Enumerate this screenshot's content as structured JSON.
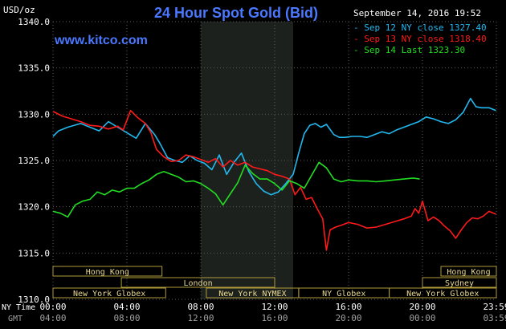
{
  "chart_data": {
    "type": "line",
    "title": "24 Hour Spot Gold (Bid)",
    "brand": "www.kitco.com",
    "ylabel": "USD/oz",
    "timestamp": "September 14, 2016 19:52",
    "ylim": [
      1310,
      1340
    ],
    "y_ticks": [
      "1340.0",
      "1335.0",
      "1330.0",
      "1325.0",
      "1320.0",
      "1315.0",
      "1310.0"
    ],
    "x_ticks_ny": [
      "00:00",
      "04:00",
      "08:00",
      "12:00",
      "16:00",
      "20:00",
      "23:59"
    ],
    "x_ticks_gmt": [
      "04:00",
      "08:00",
      "12:00",
      "16:00",
      "20:00",
      "00:00",
      "03:59"
    ],
    "x_row_label_ny": "NY Time",
    "x_row_label_gmt": "GMT",
    "highlight": [
      8,
      13
    ],
    "legend": [
      {
        "label": "Sep 12 NY close 1327.40",
        "color": "#22b8f0"
      },
      {
        "label": "Sep 13 NY close 1318.40",
        "color": "#ff1a1a"
      },
      {
        "label": "Sep 14 Last 1323.30",
        "color": "#22dd22"
      }
    ],
    "sessions": [
      {
        "label": "Hong Kong",
        "start": 0,
        "end": 5.9,
        "row": 0
      },
      {
        "label": "Hong Kong",
        "start": 21,
        "end": 24,
        "row": 0
      },
      {
        "label": "London",
        "start": 3.7,
        "end": 12,
        "row": 1
      },
      {
        "label": "Sydney",
        "start": 20,
        "end": 24,
        "row": 1
      },
      {
        "label": "New York Globex",
        "start": 0,
        "end": 6.1,
        "row": 2
      },
      {
        "label": "New York NYMEX",
        "start": 8.3,
        "end": 13.3,
        "row": 2
      },
      {
        "label": "NY Globex",
        "start": 13.3,
        "end": 18.2,
        "row": 2
      },
      {
        "label": "New York Globex",
        "start": 18.2,
        "end": 24,
        "row": 2
      }
    ],
    "series": [
      {
        "color": "#22b8f0",
        "x": [
          0,
          0.3,
          0.8,
          1.5,
          2.0,
          2.5,
          3.0,
          3.5,
          4.0,
          4.5,
          5.0,
          5.5,
          5.8,
          6.2,
          6.6,
          7.0,
          7.4,
          7.8,
          8.2,
          8.6,
          9.0,
          9.4,
          9.8,
          10.2,
          10.6,
          11.0,
          11.4,
          11.8,
          12.2,
          12.6,
          13.0,
          13.3,
          13.6,
          13.9,
          14.2,
          14.5,
          14.8,
          15.2,
          15.5,
          15.8,
          16.2,
          16.6,
          17.0,
          17.4,
          17.8,
          18.2,
          18.6,
          19.0,
          19.4,
          19.8,
          20.2,
          20.6,
          21.0,
          21.4,
          21.8,
          22.2,
          22.6,
          22.9,
          23.2,
          23.6,
          23.98
        ],
        "y": [
          1327.6,
          1328.2,
          1328.6,
          1329.0,
          1328.6,
          1328.2,
          1329.2,
          1328.6,
          1328.0,
          1327.4,
          1329.0,
          1327.8,
          1326.8,
          1325.3,
          1325.0,
          1324.8,
          1325.5,
          1325.0,
          1324.7,
          1324.0,
          1325.6,
          1323.5,
          1324.8,
          1325.8,
          1323.8,
          1322.5,
          1321.7,
          1321.3,
          1321.6,
          1322.5,
          1323.5,
          1325.8,
          1327.9,
          1328.8,
          1329.0,
          1328.6,
          1328.9,
          1327.8,
          1327.5,
          1327.5,
          1327.6,
          1327.6,
          1327.5,
          1327.8,
          1328.1,
          1327.9,
          1328.3,
          1328.6,
          1328.9,
          1329.2,
          1329.7,
          1329.5,
          1329.2,
          1329.0,
          1329.4,
          1330.2,
          1331.7,
          1330.8,
          1330.7,
          1330.7,
          1330.4
        ]
      },
      {
        "color": "#ff1a1a",
        "x": [
          0,
          0.5,
          1.0,
          1.5,
          2.0,
          2.5,
          3.0,
          3.5,
          3.8,
          4.2,
          4.6,
          5.0,
          5.3,
          5.6,
          6.0,
          6.4,
          6.8,
          7.2,
          7.6,
          8.0,
          8.4,
          8.8,
          9.2,
          9.6,
          10.0,
          10.4,
          10.8,
          11.2,
          11.6,
          12.0,
          12.4,
          12.8,
          13.1,
          13.4,
          13.7,
          14.0,
          14.3,
          14.6,
          14.8,
          15.0,
          15.3,
          15.6,
          16.0,
          16.5,
          17.0,
          17.5,
          18.0,
          18.5,
          19.0,
          19.4,
          19.6,
          19.8,
          20.0,
          20.3,
          20.6,
          20.9,
          21.2,
          21.5,
          21.8,
          22.1,
          22.4,
          22.7,
          23.0,
          23.3,
          23.6,
          23.98
        ],
        "y": [
          1330.3,
          1329.8,
          1329.5,
          1329.2,
          1328.8,
          1328.7,
          1328.4,
          1328.7,
          1328.3,
          1330.4,
          1329.6,
          1329.0,
          1328.0,
          1326.2,
          1325.4,
          1324.9,
          1325.0,
          1325.6,
          1325.4,
          1325.1,
          1324.8,
          1325.2,
          1324.3,
          1325.0,
          1324.5,
          1324.8,
          1324.3,
          1324.1,
          1323.9,
          1323.5,
          1323.3,
          1323.0,
          1321.3,
          1322.1,
          1320.8,
          1321.0,
          1319.8,
          1318.7,
          1315.3,
          1317.5,
          1317.8,
          1318.0,
          1318.3,
          1318.1,
          1317.7,
          1317.8,
          1318.1,
          1318.4,
          1318.7,
          1319.0,
          1319.8,
          1319.3,
          1320.6,
          1318.5,
          1318.9,
          1318.5,
          1317.9,
          1317.4,
          1316.6,
          1317.5,
          1318.3,
          1318.8,
          1318.7,
          1319.0,
          1319.5,
          1319.2
        ]
      },
      {
        "color": "#22dd22",
        "x": [
          0,
          0.4,
          0.8,
          1.2,
          1.6,
          2.0,
          2.4,
          2.8,
          3.2,
          3.6,
          4.0,
          4.4,
          4.8,
          5.2,
          5.6,
          6.0,
          6.4,
          6.8,
          7.2,
          7.6,
          8.0,
          8.4,
          8.8,
          9.2,
          9.6,
          10.0,
          10.4,
          10.8,
          11.2,
          11.6,
          12.0,
          12.4,
          12.8,
          13.2,
          13.6,
          14.0,
          14.4,
          14.8,
          15.2,
          15.6,
          16.0,
          16.5,
          17.0,
          17.5,
          18.0,
          18.5,
          19.0,
          19.5,
          19.85
        ],
        "y": [
          1319.5,
          1319.3,
          1318.9,
          1320.2,
          1320.6,
          1320.8,
          1321.6,
          1321.3,
          1321.8,
          1321.6,
          1322.0,
          1322.0,
          1322.5,
          1322.9,
          1323.5,
          1323.8,
          1323.5,
          1323.2,
          1322.7,
          1322.8,
          1322.5,
          1322.0,
          1321.4,
          1320.2,
          1321.4,
          1322.6,
          1324.5,
          1323.6,
          1323.0,
          1323.0,
          1322.5,
          1321.8,
          1322.8,
          1322.5,
          1322.0,
          1323.4,
          1324.8,
          1324.2,
          1323.0,
          1322.7,
          1322.9,
          1322.8,
          1322.8,
          1322.7,
          1322.8,
          1322.9,
          1323.0,
          1323.1,
          1323.0
        ]
      }
    ]
  }
}
